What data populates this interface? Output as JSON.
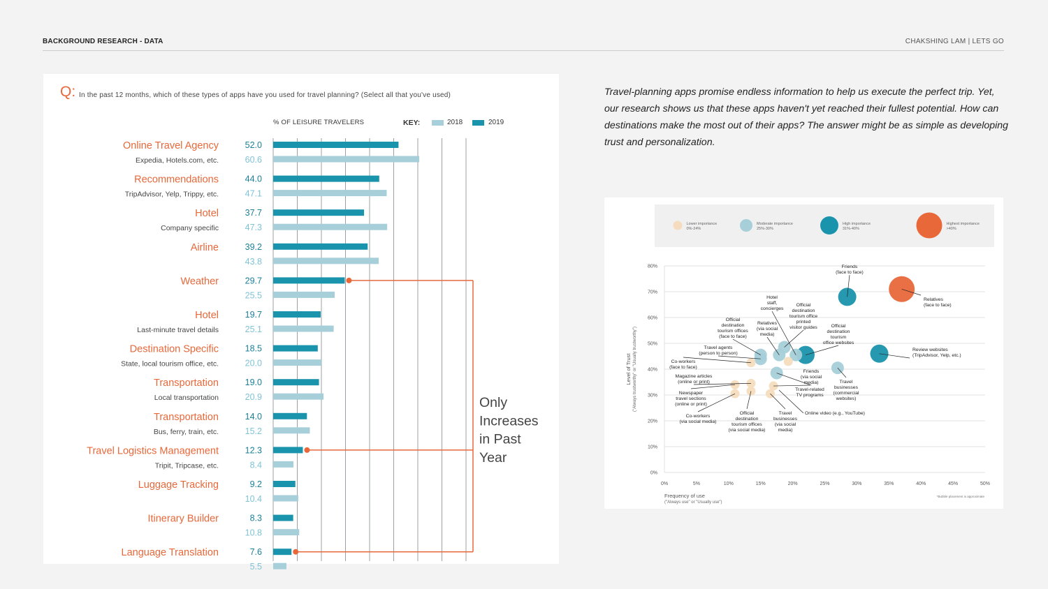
{
  "header": {
    "left": "BACKGROUND RESEARCH -  DATA",
    "right": "CHAKSHING LAM | LETS GO"
  },
  "question": {
    "mark": "Q:",
    "text": "In the past 12 months, which of these types of apps have you used for travel planning?  (Select all that you've used)"
  },
  "legend": {
    "title": "% OF  LEISURE TRAVELERS",
    "key": "KEY:",
    "y2018": "2018",
    "y2019": "2019"
  },
  "colors": {
    "accent": "#e8683a",
    "bar2019": "#1a93ad",
    "bar2018": "#a7cfd9",
    "grid": "#9aa0a3",
    "value2018": "#7fc3d6"
  },
  "intro_text": "Travel-planning apps promise endless information to help us execute the perfect trip. Yet, our research shows us that these apps haven't yet reached their fullest potential. How can destinations make the most out of their apps? The answer might be as simple as developing trust and personalization.",
  "callout": {
    "lines": [
      "Only",
      "Increases",
      "in Past",
      "Year"
    ]
  },
  "chart_data": [
    {
      "type": "bar",
      "orientation": "horizontal",
      "title": "% OF  LEISURE TRAVELERS",
      "categories": [
        {
          "label": "Online Travel Agency",
          "sub": "Expedia, Hotels.com, etc."
        },
        {
          "label": "Recommendations",
          "sub": "TripAdvisor, Yelp, Trippy, etc."
        },
        {
          "label": "Hotel",
          "sub": "Company specific"
        },
        {
          "label": "Airline",
          "sub": ""
        },
        {
          "label": "Weather",
          "sub": ""
        },
        {
          "label": "Hotel",
          "sub": "Last-minute travel details"
        },
        {
          "label": "Destination Specific",
          "sub": "State, local tourism office, etc."
        },
        {
          "label": "Transportation",
          "sub": "Local transportation"
        },
        {
          "label": "Transportation",
          "sub": "Bus, ferry, train, etc."
        },
        {
          "label": "Travel Logistics Management",
          "sub": "Tripit, Tripcase, etc."
        },
        {
          "label": "Luggage Tracking",
          "sub": ""
        },
        {
          "label": "Itinerary Builder",
          "sub": ""
        },
        {
          "label": "Language Translation",
          "sub": ""
        }
      ],
      "series": [
        {
          "name": "2019",
          "values": [
            52.0,
            44.0,
            37.7,
            39.2,
            29.7,
            19.7,
            18.5,
            19.0,
            14.0,
            12.3,
            9.2,
            8.3,
            7.6
          ]
        },
        {
          "name": "2018",
          "values": [
            60.6,
            47.1,
            47.3,
            43.8,
            25.5,
            25.1,
            20.0,
            20.9,
            15.2,
            8.4,
            10.4,
            10.8,
            5.5
          ]
        }
      ],
      "value_labels_2019": [
        "52.0",
        "44.0",
        "37.7",
        "39.2",
        "29.7",
        "19.7",
        "18.5",
        "19.0",
        "14.0",
        "12.3",
        "9.2",
        "8.3",
        "7.6"
      ],
      "value_labels_2018": [
        "60.6",
        "47.1",
        "47.3",
        "43.8",
        "25.5",
        "25.1",
        "20.0",
        "20.9",
        "15.2",
        "8.4",
        "10.4",
        "10.8",
        "5.5"
      ],
      "xlim": [
        0,
        80
      ],
      "gridlines": [
        10,
        20,
        30,
        40,
        50,
        60,
        70,
        80
      ],
      "highlighted": [
        4,
        9,
        12
      ]
    },
    {
      "type": "scatter",
      "subtype": "bubble",
      "ylabel": "Level of Trust",
      "ylabel_sub": "(\"Always trustworthy\" or \"Usually trustworthy\")",
      "xlabel": "Frequency of use",
      "xlabel_sub": "(\"Always use\" or \"Usually use\")",
      "note": "*Bubble placement is approximate",
      "xticks": [
        "0%",
        "5%",
        "10%",
        "15%",
        "20%",
        "25%",
        "30%",
        "35%",
        "40%",
        "45%",
        "50%"
      ],
      "yticks": [
        "0%",
        "10%",
        "20%",
        "30%",
        "40%",
        "50%",
        "60%",
        "70%",
        "80%"
      ],
      "xlim": [
        0,
        50
      ],
      "ylim": [
        0,
        80
      ],
      "legend": [
        {
          "level": "low",
          "label": "Lower importance",
          "range": "0%-24%",
          "color": "#f5dcbe"
        },
        {
          "level": "moderate",
          "label": "Moderate importance",
          "range": "25%-30%",
          "color": "#a7cfd9"
        },
        {
          "level": "high",
          "label": "High importance",
          "range": "31%-40%",
          "color": "#1a93ad"
        },
        {
          "level": "highest",
          "label": "Highest importance",
          "range": ">40%",
          "color": "#e8683a"
        }
      ],
      "points": [
        {
          "x": 28.5,
          "y": 68,
          "level": "high",
          "lines": [
            "Friends",
            "(face to face)"
          ]
        },
        {
          "x": 37,
          "y": 71,
          "level": "highest",
          "lines": [
            "Relatives",
            "(face to face)"
          ]
        },
        {
          "x": 33.5,
          "y": 46,
          "level": "high",
          "lines": [
            "Review websites",
            "(TripAdvisor, Yelp, etc.)"
          ]
        },
        {
          "x": 22,
          "y": 45.5,
          "level": "high",
          "lines": [
            "Official",
            "destination",
            "tourism",
            "office websites"
          ]
        },
        {
          "x": 18.7,
          "y": 48.5,
          "level": "moderate",
          "lines": [
            "Official",
            "destination",
            "tourism office",
            "printed",
            "visitor guides"
          ]
        },
        {
          "x": 17.9,
          "y": 45.5,
          "level": "moderate",
          "lines": [
            "Relatives",
            "(via social",
            "media)"
          ]
        },
        {
          "x": 15,
          "y": 45.5,
          "level": "moderate",
          "lines": [
            "Official",
            "destination",
            "tourism offices",
            "(face to face)"
          ]
        },
        {
          "x": 15,
          "y": 44,
          "level": "moderate",
          "lines": [
            "Travel agents",
            "(person to person)"
          ]
        },
        {
          "x": 20.5,
          "y": 45.5,
          "level": "moderate",
          "lines": [
            "Hotel",
            "staff,",
            "concierges"
          ]
        },
        {
          "x": 17.5,
          "y": 38.5,
          "level": "moderate",
          "lines": [
            "Friends",
            "(via social",
            "media)"
          ]
        },
        {
          "x": 27,
          "y": 40.5,
          "level": "moderate",
          "lines": [
            "Travel",
            "businesses",
            "(commercial",
            "websites)"
          ]
        },
        {
          "x": 13.5,
          "y": 42.5,
          "level": "low",
          "lines": [
            "Co-workers",
            "(face to face)"
          ]
        },
        {
          "x": 19.3,
          "y": 43,
          "level": "low",
          "lines": []
        },
        {
          "x": 13.5,
          "y": 34.5,
          "level": "low",
          "lines": [
            "Magazine articles",
            "(online or print)"
          ]
        },
        {
          "x": 11,
          "y": 34,
          "level": "low",
          "lines": [
            "Newspaper",
            "travel sections",
            "(online or print)"
          ]
        },
        {
          "x": 17,
          "y": 33.5,
          "level": "low",
          "lines": [
            "Travel-related",
            "TV programs"
          ]
        },
        {
          "x": 11,
          "y": 30.5,
          "level": "low",
          "lines": [
            "Co-workers",
            "(via social media)"
          ]
        },
        {
          "x": 13.5,
          "y": 31.5,
          "level": "low",
          "lines": [
            "Official",
            "destination",
            "tourism offices",
            "(via social media)"
          ]
        },
        {
          "x": 16.5,
          "y": 30.5,
          "level": "low",
          "lines": [
            "Travel",
            "businesses",
            "(via social",
            "media)"
          ]
        }
      ],
      "annotation_online_video": "Online video (e.g., YouTube)"
    }
  ]
}
